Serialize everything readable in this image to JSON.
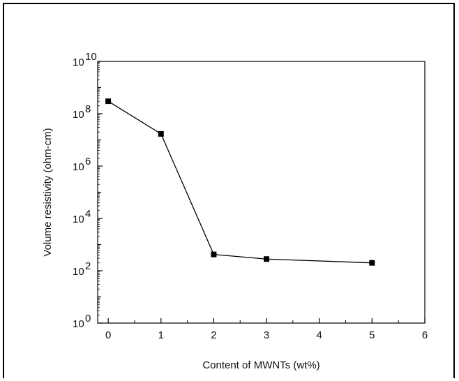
{
  "chart_data": {
    "type": "line",
    "title": "",
    "xlabel": "Content of MWNTs (wt%)",
    "ylabel": "Volume resistivity (ohm-cm)",
    "xlim": [
      -0.2,
      6
    ],
    "ylim": [
      1,
      10000000000
    ],
    "y_scale": "log",
    "grid": false,
    "x_ticks": [
      0,
      1,
      2,
      3,
      4,
      5,
      6
    ],
    "x_tick_labels": [
      "0",
      "1",
      "2",
      "3",
      "4",
      "5",
      "6"
    ],
    "y_ticks": [
      1,
      100,
      10000,
      1000000,
      100000000,
      10000000000
    ],
    "y_tick_labels": [
      {
        "base": "10",
        "exp": "0"
      },
      {
        "base": "10",
        "exp": "2"
      },
      {
        "base": "10",
        "exp": "4"
      },
      {
        "base": "10",
        "exp": "6"
      },
      {
        "base": "10",
        "exp": "8"
      },
      {
        "base": "10",
        "exp": "10"
      }
    ],
    "series": [
      {
        "x": [
          0,
          1,
          2,
          3,
          5
        ],
        "y": [
          300000000,
          17000000,
          420,
          280,
          200
        ],
        "color": "#000000",
        "marker": "square"
      }
    ]
  }
}
